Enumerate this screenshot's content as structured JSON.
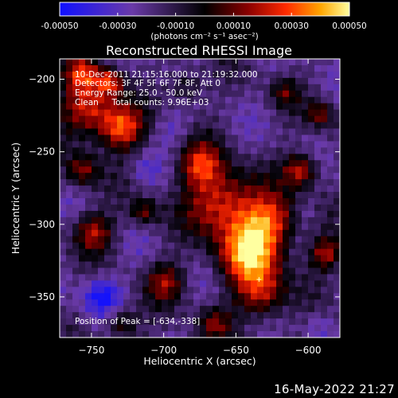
{
  "colorbar": {
    "tick_labels": [
      "-0.00050",
      "-0.00030",
      "-0.00010",
      "0.00010",
      "0.00030",
      "0.00050"
    ],
    "tick_values": [
      -0.0005,
      -0.0003,
      -0.0001,
      0.0001,
      0.0003,
      0.0005
    ],
    "range": [
      -0.0005,
      0.0005
    ],
    "units_label": "(photons cm⁻² s⁻¹ asec⁻²)",
    "stops": [
      {
        "v": 0.0,
        "color": "#1010ff"
      },
      {
        "v": 0.25,
        "color": "#6a3aa8"
      },
      {
        "v": 0.5,
        "color": "#000000"
      },
      {
        "v": 0.65,
        "color": "#8a0000"
      },
      {
        "v": 0.78,
        "color": "#ff2a00"
      },
      {
        "v": 0.9,
        "color": "#ffa500"
      },
      {
        "v": 1.0,
        "color": "#ffffa0"
      }
    ]
  },
  "chart_data": {
    "type": "heatmap",
    "title": "Reconstructed RHESSI Image",
    "xlabel": "Heliocentric X (arcsec)",
    "ylabel": "Heliocentric Y (arcsec)",
    "xlim": [
      -772,
      -578
    ],
    "ylim": [
      -378,
      -186
    ],
    "xticks": [
      -750,
      -700,
      -650,
      -600
    ],
    "yticks": [
      -200,
      -250,
      -300,
      -350
    ],
    "annotations": [
      "10-Dec-2011 21:15:16.000 to 21:19:32.000",
      "Detectors: 3F 4F 5F 6F 7F 8F, Att 0",
      "Energy Range: 25.0 - 50.0 keV",
      "Clean     Total counts: 9.96E+03"
    ],
    "peak_label": "Position of Peak = [-634,-338]",
    "peak": [
      -634,
      -338
    ]
  },
  "footer": {
    "timestamp": "16-May-2022 21:27"
  }
}
